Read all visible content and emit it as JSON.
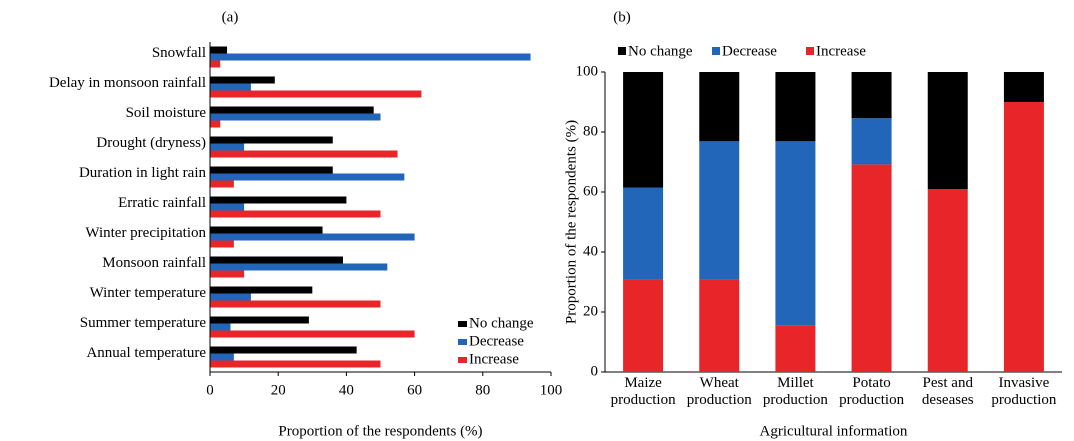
{
  "chart_data": [
    {
      "type": "hbar",
      "panel": "(a)",
      "x_label": "Proportion of the respondents (%)",
      "categories": [
        "Snowfall",
        "Delay in monsoon rainfall",
        "Soil moisture",
        "Drought (dryness)",
        "Duration in light rain",
        "Erratic rainfall",
        "Winter precipitation",
        "Monsoon rainfall",
        "Winter temperature",
        "Summer temperature",
        "Annual temperature"
      ],
      "series": [
        {
          "name": "No change",
          "color": "#000000",
          "values": [
            5,
            19,
            48,
            36,
            36,
            40,
            33,
            39,
            30,
            29,
            43
          ]
        },
        {
          "name": "Decrease",
          "color": "#2166b8",
          "values": [
            94,
            12,
            50,
            10,
            57,
            10,
            60,
            52,
            12,
            6,
            7
          ]
        },
        {
          "name": "Increase",
          "color": "#e8262a",
          "values": [
            3,
            62,
            3,
            55,
            7,
            50,
            7,
            10,
            50,
            60,
            50
          ]
        }
      ],
      "xlim": [
        0,
        100
      ],
      "xticks": [
        0,
        20,
        40,
        60,
        80,
        100
      ],
      "legend": "lower right"
    },
    {
      "type": "stacked-bar",
      "panel": "(b)",
      "x_label": "Agricultural information",
      "y_label": "Proportion of the respondents (%)",
      "categories": [
        "Maize production",
        "Wheat production",
        "Millet production",
        "Potato production",
        "Pest and deseases",
        "Invasive production"
      ],
      "series": [
        {
          "name": "Increase",
          "color": "#e8262a",
          "values": [
            30.8,
            30.8,
            15.4,
            69.2,
            61,
            90
          ]
        },
        {
          "name": "Decrease",
          "color": "#2166b8",
          "values": [
            30.7,
            46.1,
            61.5,
            15.4,
            0,
            0
          ]
        },
        {
          "name": "No change",
          "color": "#000000",
          "values": [
            38.5,
            23.1,
            23.1,
            15.4,
            39,
            10
          ]
        }
      ],
      "ylim": [
        0,
        100
      ],
      "yticks": [
        0,
        20,
        40,
        60,
        80,
        100
      ],
      "legend": "top"
    }
  ]
}
